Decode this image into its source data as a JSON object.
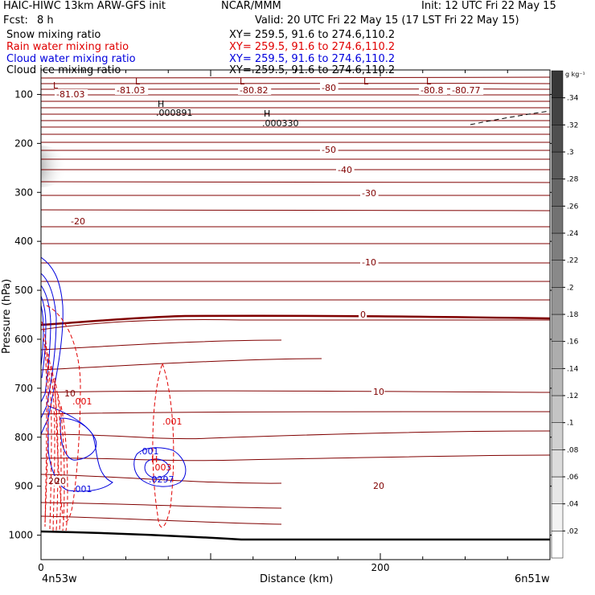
{
  "header": {
    "title": "HAIC-HIWC 13km ARW-GFS init",
    "org": "NCAR/MMM",
    "init": "Init: 12 UTC Fri 22 May 15",
    "fcst_label": "Fcst:",
    "fcst_value": "8 h",
    "valid": "Valid: 20 UTC Fri 22 May 15 (17 LST Fri 22 May 15)"
  },
  "fields": [
    {
      "name": "Snow mixing ratio",
      "xy": "XY= 259.5, 91.6 to 274.6,110.2",
      "color": "#000000"
    },
    {
      "name": "Rain water mixing ratio",
      "xy": "XY= 259.5, 91.6 to 274.6,110.2",
      "color": "#e00000"
    },
    {
      "name": "Cloud water mixing ratio",
      "xy": "XY= 259.5, 91.6 to 274.6,110.2",
      "color": "#0000dd"
    },
    {
      "name": "Cloud ice mixing ratio",
      "xy": "XY= 259.5, 91.6 to 274.6,110.2",
      "color": "#000000"
    }
  ],
  "chart_data": {
    "type": "cross-section",
    "xlabel": "Distance (km)",
    "ylabel": "Pressure (hPa)",
    "xlim": [
      0,
      300
    ],
    "ylim": [
      1050,
      50
    ],
    "x_ticks": [
      0,
      200
    ],
    "y_ticks": [
      100,
      200,
      300,
      400,
      500,
      600,
      700,
      800,
      900,
      1000
    ],
    "x_endpoints": {
      "left": "4n53w",
      "right": "6n51w"
    },
    "colorbar": {
      "unit": "g kg⁻¹",
      "levels": [
        ".02",
        ".04",
        ".06",
        ".08",
        ".1",
        ".12",
        ".14",
        ".16",
        ".18",
        ".2",
        ".22",
        ".24",
        ".26",
        ".28",
        ".3",
        ".32",
        ".34"
      ]
    },
    "temperature_labels": [
      "-81.03",
      "-81.03",
      "-80.82",
      "-80",
      "-80.8",
      "-80.77",
      "-50",
      "-40",
      "-30",
      "-20",
      "-10",
      "0",
      "10",
      "20",
      "20"
    ],
    "extrema_labels": [
      "L",
      "L",
      "L",
      "L",
      "L",
      "H",
      ".000891",
      "H",
      ".000330",
      "H",
      ".0297"
    ],
    "mixing_labels": [
      ".001",
      ".001",
      ".001",
      ".003",
      ".001",
      "10",
      "20"
    ],
    "colors": {
      "temperature": "#800000",
      "rain": "#e00000",
      "cloud_water": "#0000dd",
      "ground": "#000000"
    }
  }
}
